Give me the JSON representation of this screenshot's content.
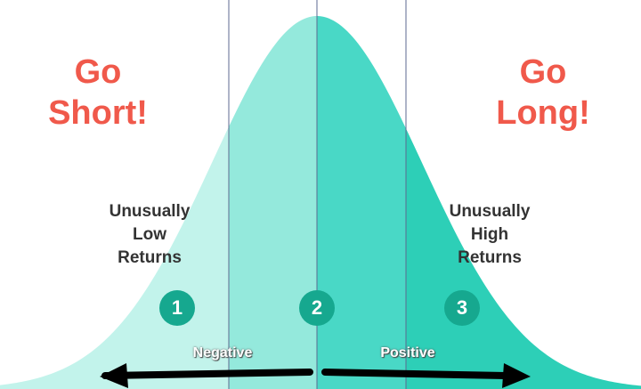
{
  "colors": {
    "headline": "#f0594b",
    "label": "#333333",
    "marker": "#16a88f",
    "zone_1": "#c2f3eb",
    "zone_2_left": "#94e9dc",
    "zone_2_right": "#49d8c6",
    "zone_3": "#2dcfb7",
    "divider": "#5d6a90",
    "arrow": "#000000"
  },
  "headlines": {
    "left": "Go\nShort!",
    "right": "Go\nLong!"
  },
  "regions": [
    {
      "label": "Unusually\nLow\nReturns",
      "marker": "1"
    },
    {
      "label": "",
      "marker": "2"
    },
    {
      "label": "Unusually\nHigh\nReturns",
      "marker": "3"
    }
  ],
  "arrows": {
    "left_label": "Negative",
    "right_label": "Positive"
  }
}
